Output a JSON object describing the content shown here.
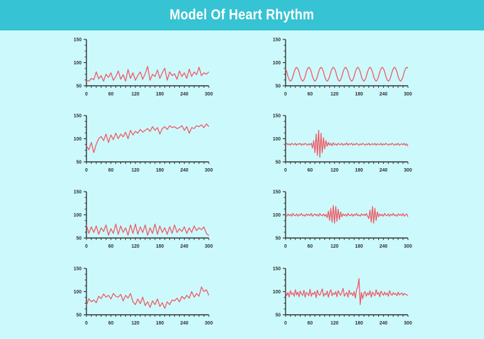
{
  "header": {
    "title": "Model Of Heart Rhythm"
  },
  "colors": {
    "background": "#ccf9fc",
    "header": "#36c3d3",
    "line": "#ef5a64",
    "axis": "#333333"
  },
  "chart_data": [
    {
      "type": "line",
      "position": "left-1",
      "xlim": [
        0,
        300
      ],
      "ylim": [
        50,
        150
      ],
      "xticks": [
        "0",
        "60",
        "120",
        "180",
        "240",
        "300"
      ],
      "yticks": [
        "50",
        "100",
        "150"
      ],
      "values": [
        62,
        60,
        66,
        63,
        80,
        65,
        72,
        60,
        75,
        68,
        78,
        62,
        70,
        82,
        64,
        74,
        60,
        85,
        66,
        78,
        62,
        72,
        80,
        64,
        76,
        92,
        62,
        75,
        70,
        84,
        66,
        78,
        88,
        62,
        80,
        72,
        76,
        64,
        82,
        70,
        78,
        66,
        86,
        70,
        80,
        74,
        90,
        72,
        78,
        75,
        80
      ]
    },
    {
      "type": "line",
      "position": "left-2",
      "xlim": [
        0,
        300
      ],
      "ylim": [
        50,
        150
      ],
      "xticks": [
        "0",
        "60",
        "120",
        "180",
        "240",
        "300"
      ],
      "yticks": [
        "50",
        "100",
        "150"
      ],
      "values": [
        85,
        76,
        92,
        70,
        88,
        100,
        105,
        96,
        110,
        92,
        108,
        98,
        112,
        100,
        110,
        104,
        114,
        100,
        118,
        108,
        116,
        112,
        120,
        114,
        118,
        122,
        116,
        126,
        118,
        124,
        110,
        122,
        126,
        120,
        128,
        124,
        126,
        122,
        124,
        128,
        118,
        126,
        112,
        124,
        122,
        128,
        126,
        130,
        124,
        132,
        126
      ]
    },
    {
      "type": "line",
      "position": "left-3",
      "xlim": [
        0,
        300
      ],
      "ylim": [
        50,
        150
      ],
      "xticks": [
        "0",
        "60",
        "120",
        "180",
        "240",
        "300"
      ],
      "yticks": [
        "50",
        "100",
        "150"
      ],
      "values": [
        78,
        60,
        74,
        62,
        76,
        58,
        72,
        64,
        78,
        56,
        70,
        60,
        80,
        58,
        76,
        62,
        72,
        56,
        78,
        60,
        80,
        58,
        74,
        62,
        78,
        56,
        72,
        60,
        80,
        58,
        76,
        62,
        72,
        58,
        74,
        60,
        78,
        62,
        70,
        64,
        74,
        60,
        72,
        62,
        76,
        66,
        72,
        68,
        74,
        60,
        55
      ]
    },
    {
      "type": "line",
      "position": "left-4",
      "xlim": [
        0,
        300
      ],
      "ylim": [
        50,
        150
      ],
      "xticks": [
        "0",
        "60",
        "120",
        "180",
        "240",
        "300"
      ],
      "yticks": [
        "50",
        "100",
        "150"
      ],
      "values": [
        70,
        85,
        78,
        82,
        76,
        90,
        85,
        95,
        88,
        92,
        84,
        96,
        90,
        88,
        94,
        80,
        92,
        86,
        96,
        78,
        72,
        84,
        74,
        88,
        70,
        78,
        66,
        80,
        72,
        84,
        68,
        76,
        64,
        78,
        72,
        82,
        80,
        86,
        78,
        90,
        84,
        92,
        86,
        100,
        88,
        96,
        90,
        110,
        100,
        104,
        92
      ]
    },
    {
      "type": "line",
      "position": "right-1",
      "xlim": [
        0,
        300
      ],
      "ylim": [
        50,
        150
      ],
      "xticks": [
        "0",
        "60",
        "120",
        "180",
        "240",
        "300"
      ],
      "yticks": [
        "50",
        "100",
        "150"
      ],
      "values": [
        87,
        80,
        70,
        63,
        60,
        63,
        70,
        80,
        87,
        90,
        87,
        80,
        70,
        63,
        60,
        63,
        70,
        80,
        87,
        90,
        87,
        80,
        70,
        63,
        60,
        63,
        70,
        80,
        87,
        90,
        87,
        80,
        70,
        63,
        60,
        63,
        70,
        80,
        87,
        90,
        87,
        80,
        70,
        63,
        60,
        63,
        70,
        80,
        87,
        90,
        87,
        80,
        70,
        63,
        60,
        63,
        70,
        80,
        87,
        90,
        87,
        80,
        70,
        63,
        60,
        63,
        70,
        80,
        87,
        90,
        87,
        80,
        70,
        63,
        60,
        63,
        70,
        80,
        87,
        90,
        87,
        80,
        70,
        63,
        60,
        63,
        70,
        80,
        87,
        90,
        87,
        80,
        70,
        63,
        60,
        63,
        70,
        80,
        87,
        90,
        88
      ]
    },
    {
      "type": "line",
      "position": "right-2",
      "xlim": [
        0,
        300
      ],
      "ylim": [
        50,
        150
      ],
      "xticks": [
        "0",
        "60",
        "120",
        "180",
        "240",
        "300"
      ],
      "yticks": [
        "50",
        "100",
        "150"
      ],
      "values": [
        86,
        90,
        87,
        89,
        86,
        90,
        88,
        87,
        90,
        86,
        89,
        88,
        90,
        86,
        89,
        87,
        90,
        88,
        86,
        89,
        87,
        90,
        80,
        96,
        70,
        110,
        64,
        118,
        60,
        112,
        70,
        102,
        78,
        96,
        84,
        92,
        86,
        90,
        85,
        91,
        87,
        89,
        86,
        90,
        88,
        87,
        90,
        86,
        89,
        87,
        91,
        86,
        89,
        88,
        90,
        86,
        89,
        87,
        90,
        88,
        86,
        89,
        87,
        90,
        88,
        86,
        89,
        87,
        90,
        86,
        88,
        89,
        87,
        90,
        86,
        89,
        88,
        87,
        90,
        86,
        89,
        87,
        90,
        88,
        86,
        89,
        87,
        90,
        88,
        86,
        89,
        87,
        90,
        86,
        88,
        89,
        87,
        90,
        86,
        89,
        84
      ]
    },
    {
      "type": "line",
      "position": "right-3",
      "xlim": [
        0,
        300
      ],
      "ylim": [
        50,
        150
      ],
      "xticks": [
        "0",
        "60",
        "120",
        "180",
        "240",
        "300"
      ],
      "yticks": [
        "50",
        "100",
        "150"
      ],
      "values": [
        100,
        97,
        102,
        98,
        101,
        97,
        103,
        99,
        98,
        102,
        97,
        101,
        99,
        103,
        98,
        100,
        97,
        102,
        99,
        101,
        98,
        103,
        97,
        100,
        102,
        98,
        101,
        97,
        103,
        99,
        98,
        102,
        97,
        101,
        94,
        108,
        88,
        114,
        84,
        120,
        82,
        118,
        86,
        112,
        90,
        106,
        96,
        102,
        98,
        101,
        97,
        103,
        99,
        98,
        102,
        97,
        101,
        99,
        103,
        98,
        100,
        97,
        102,
        99,
        101,
        98,
        103,
        97,
        92,
        110,
        84,
        118,
        82,
        114,
        88,
        106,
        96,
        102,
        98,
        101,
        97,
        103,
        99,
        98,
        102,
        97,
        101,
        99,
        103,
        98,
        100,
        97,
        102,
        99,
        101,
        98,
        103,
        97,
        100,
        102,
        96
      ]
    },
    {
      "type": "line",
      "position": "right-4",
      "xlim": [
        0,
        300
      ],
      "ylim": [
        50,
        150
      ],
      "xticks": [
        "0",
        "60",
        "120",
        "180",
        "240",
        "300"
      ],
      "yticks": [
        "50",
        "100",
        "150"
      ],
      "values": [
        100,
        92,
        98,
        88,
        102,
        94,
        97,
        90,
        104,
        93,
        99,
        89,
        101,
        95,
        92,
        103,
        88,
        98,
        96,
        91,
        105,
        90,
        97,
        94,
        100,
        87,
        103,
        95,
        92,
        99,
        106,
        90,
        96,
        93,
        101,
        88,
        98,
        104,
        91,
        97,
        94,
        100,
        89,
        102,
        96,
        92,
        99,
        107,
        90,
        95,
        98,
        88,
        103,
        94,
        97,
        91,
        100,
        86,
        104,
        110,
        128,
        72,
        98,
        85,
        96,
        100,
        90,
        97,
        93,
        102,
        88,
        99,
        95,
        91,
        104,
        94,
        98,
        89,
        101,
        96,
        92,
        99,
        93,
        97,
        90,
        102,
        95,
        92,
        98,
        94,
        96,
        91,
        99,
        93,
        95,
        97,
        92,
        96,
        94,
        93,
        92
      ]
    }
  ]
}
